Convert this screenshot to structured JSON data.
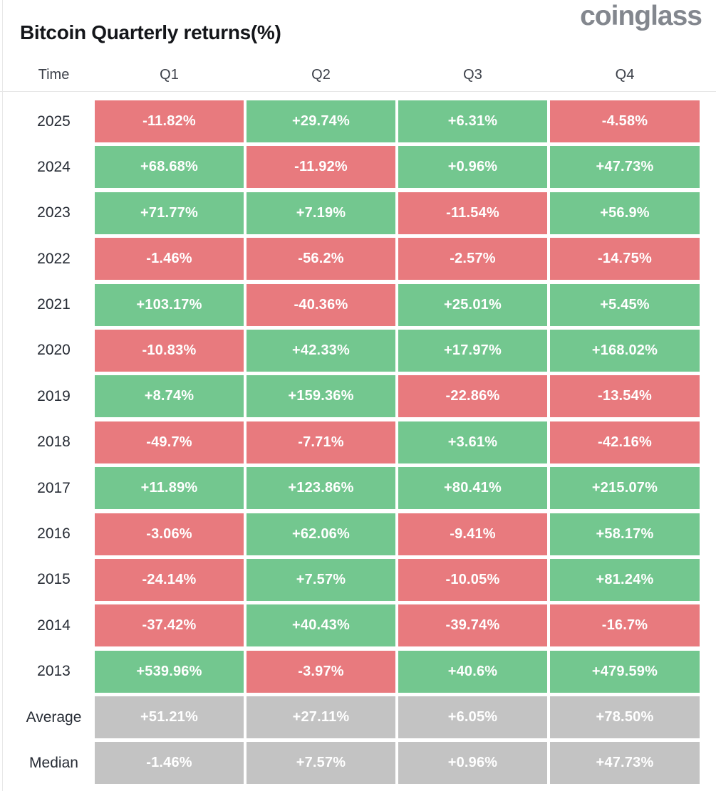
{
  "header": {
    "title": "Bitcoin Quarterly returns(%)",
    "logo": "coinglass"
  },
  "chart_data": {
    "type": "heatmap",
    "title": "Bitcoin Quarterly returns(%)",
    "unit": "percent",
    "columns": [
      "Time",
      "Q1",
      "Q2",
      "Q3",
      "Q4"
    ],
    "colors": {
      "positive_green": "#73c78f",
      "negative_red": "#e87a7e",
      "summary_gray": "#c3c3c3",
      "cell_text": "#ffffff"
    },
    "rows": [
      {
        "label": "2025",
        "kind": "year",
        "values": [
          "-11.82%",
          "+29.74%",
          "+6.31%",
          "-4.58%"
        ]
      },
      {
        "label": "2024",
        "kind": "year",
        "values": [
          "+68.68%",
          "-11.92%",
          "+0.96%",
          "+47.73%"
        ]
      },
      {
        "label": "2023",
        "kind": "year",
        "values": [
          "+71.77%",
          "+7.19%",
          "-11.54%",
          "+56.9%"
        ]
      },
      {
        "label": "2022",
        "kind": "year",
        "values": [
          "-1.46%",
          "-56.2%",
          "-2.57%",
          "-14.75%"
        ]
      },
      {
        "label": "2021",
        "kind": "year",
        "values": [
          "+103.17%",
          "-40.36%",
          "+25.01%",
          "+5.45%"
        ]
      },
      {
        "label": "2020",
        "kind": "year",
        "values": [
          "-10.83%",
          "+42.33%",
          "+17.97%",
          "+168.02%"
        ]
      },
      {
        "label": "2019",
        "kind": "year",
        "values": [
          "+8.74%",
          "+159.36%",
          "-22.86%",
          "-13.54%"
        ]
      },
      {
        "label": "2018",
        "kind": "year",
        "values": [
          "-49.7%",
          "-7.71%",
          "+3.61%",
          "-42.16%"
        ]
      },
      {
        "label": "2017",
        "kind": "year",
        "values": [
          "+11.89%",
          "+123.86%",
          "+80.41%",
          "+215.07%"
        ]
      },
      {
        "label": "2016",
        "kind": "year",
        "values": [
          "-3.06%",
          "+62.06%",
          "-9.41%",
          "+58.17%"
        ]
      },
      {
        "label": "2015",
        "kind": "year",
        "values": [
          "-24.14%",
          "+7.57%",
          "-10.05%",
          "+81.24%"
        ]
      },
      {
        "label": "2014",
        "kind": "year",
        "values": [
          "-37.42%",
          "+40.43%",
          "-39.74%",
          "-16.7%"
        ]
      },
      {
        "label": "2013",
        "kind": "year",
        "values": [
          "+539.96%",
          "-3.97%",
          "+40.6%",
          "+479.59%"
        ]
      },
      {
        "label": "Average",
        "kind": "summary",
        "values": [
          "+51.21%",
          "+27.11%",
          "+6.05%",
          "+78.50%"
        ]
      },
      {
        "label": "Median",
        "kind": "summary",
        "values": [
          "-1.46%",
          "+7.57%",
          "+0.96%",
          "+47.73%"
        ]
      }
    ]
  }
}
